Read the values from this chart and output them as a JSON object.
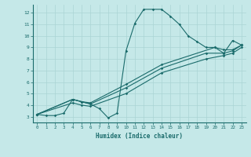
{
  "title": "",
  "xlabel": "Humidex (Indice chaleur)",
  "xlim": [
    -0.5,
    23.5
  ],
  "ylim": [
    2.5,
    12.7
  ],
  "xticks": [
    0,
    1,
    2,
    3,
    4,
    5,
    6,
    7,
    8,
    9,
    10,
    11,
    12,
    13,
    14,
    15,
    16,
    17,
    18,
    19,
    20,
    21,
    22,
    23
  ],
  "yticks": [
    3,
    4,
    5,
    6,
    7,
    8,
    9,
    10,
    11,
    12
  ],
  "bg_color": "#c5e8e8",
  "line_color": "#1a6b6b",
  "grid_color": "#aad4d4",
  "curves": [
    {
      "x": [
        0,
        1,
        2,
        3,
        4,
        5,
        6,
        7,
        8,
        9,
        10,
        11,
        12,
        13,
        14,
        15,
        16,
        17,
        18,
        19,
        20,
        21,
        22,
        23
      ],
      "y": [
        3.2,
        3.1,
        3.1,
        3.3,
        4.5,
        4.3,
        4.1,
        3.7,
        2.9,
        3.3,
        8.7,
        11.1,
        12.3,
        12.3,
        12.3,
        11.7,
        11.0,
        10.0,
        9.5,
        9.0,
        9.0,
        8.5,
        9.6,
        9.2
      ]
    },
    {
      "x": [
        0,
        4,
        5,
        6,
        10,
        14,
        19,
        21,
        22,
        23
      ],
      "y": [
        3.2,
        4.5,
        4.3,
        4.1,
        5.5,
        7.2,
        8.5,
        8.5,
        8.7,
        9.2
      ]
    },
    {
      "x": [
        0,
        4,
        5,
        6,
        10,
        14,
        19,
        21,
        22,
        23
      ],
      "y": [
        3.2,
        4.2,
        4.0,
        3.9,
        5.0,
        6.8,
        8.0,
        8.3,
        8.5,
        9.0
      ]
    },
    {
      "x": [
        0,
        4,
        5,
        6,
        10,
        14,
        20,
        21,
        22,
        23
      ],
      "y": [
        3.2,
        4.5,
        4.3,
        4.2,
        5.8,
        7.5,
        9.0,
        8.8,
        8.8,
        9.2
      ]
    }
  ]
}
